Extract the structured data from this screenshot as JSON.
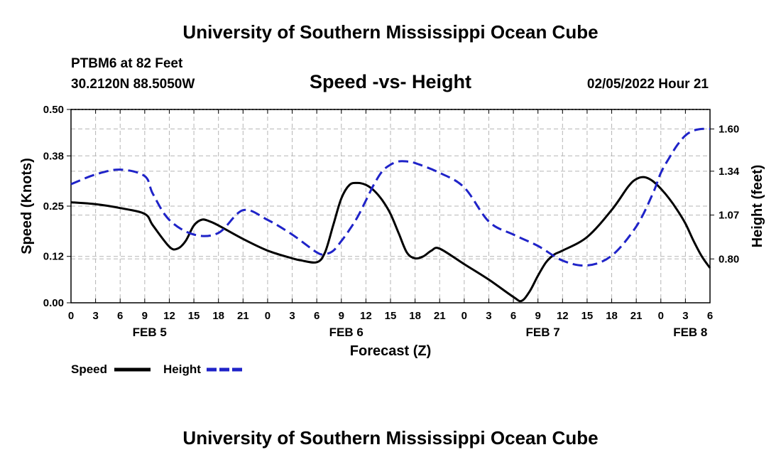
{
  "header": {
    "title": "University of Southern Mississippi Ocean Cube",
    "station": "PTBM6 at 82 Feet",
    "coords": "30.2120N  88.5050W",
    "subtitle": "Speed -vs- Height",
    "datetime": "02/05/2022 Hour 21"
  },
  "footer": {
    "title": "University of Southern Mississippi Ocean Cube"
  },
  "colors": {
    "speed": "#000000",
    "height": "#1f23c8",
    "grid": "#b5b5b5"
  },
  "chart_data": {
    "type": "line",
    "title": "Speed -vs- Height",
    "xlabel": "Forecast (Z)",
    "ylabel": "Speed (Knots)",
    "y2label": "Height (feet)",
    "x_range_hours": [
      0,
      78
    ],
    "y_left": {
      "min": 0,
      "max": 0.5,
      "ticks": [
        "0.00",
        "0.12",
        "0.25",
        "0.38",
        "0.50"
      ]
    },
    "y_right": {
      "min": 0.53,
      "max": 1.72,
      "ticks": [
        "0.80",
        "1.07",
        "1.34",
        "1.60"
      ]
    },
    "x_tick_labels": [
      "0",
      "3",
      "6",
      "9",
      "12",
      "15",
      "18",
      "21",
      "0",
      "3",
      "6",
      "9",
      "12",
      "15",
      "18",
      "21",
      "0",
      "3",
      "6",
      "9",
      "12",
      "15",
      "18",
      "21",
      "0",
      "3",
      "6"
    ],
    "date_labels": [
      {
        "text": "FEB 5",
        "hour": 9.6
      },
      {
        "text": "FEB 6",
        "hour": 33.6
      },
      {
        "text": "FEB 7",
        "hour": 57.6
      },
      {
        "text": "FEB 8",
        "hour": 75.6
      }
    ],
    "grid": true,
    "legend": [
      "Speed",
      "Height"
    ],
    "series": [
      {
        "name": "Speed",
        "style": "solid",
        "axis": "left",
        "x": [
          0,
          3,
          6,
          9,
          10,
          12,
          13,
          14,
          15,
          16,
          17,
          18,
          21,
          24,
          27,
          28,
          30,
          31,
          32,
          33,
          34,
          35,
          36,
          37,
          38,
          39,
          40,
          41,
          42,
          43,
          44,
          45,
          48,
          51,
          54,
          55,
          56,
          57,
          58,
          59,
          60,
          63,
          66,
          68,
          69,
          70,
          71,
          72,
          73,
          74,
          75,
          76,
          77,
          78
        ],
        "y": [
          0.26,
          0.255,
          0.245,
          0.23,
          0.2,
          0.145,
          0.14,
          0.16,
          0.2,
          0.215,
          0.21,
          0.2,
          0.165,
          0.135,
          0.115,
          0.11,
          0.105,
          0.13,
          0.2,
          0.27,
          0.305,
          0.31,
          0.305,
          0.29,
          0.265,
          0.23,
          0.18,
          0.13,
          0.115,
          0.12,
          0.135,
          0.14,
          0.1,
          0.06,
          0.015,
          0.005,
          0.03,
          0.07,
          0.105,
          0.125,
          0.135,
          0.17,
          0.24,
          0.3,
          0.32,
          0.325,
          0.315,
          0.295,
          0.27,
          0.24,
          0.205,
          0.16,
          0.12,
          0.09
        ]
      },
      {
        "name": "Height",
        "style": "dashed",
        "axis": "right",
        "x": [
          0,
          3,
          6,
          9,
          10,
          12,
          15,
          18,
          21,
          24,
          27,
          30,
          31,
          32,
          33,
          34,
          35,
          36,
          37,
          38,
          39,
          40,
          41,
          42,
          45,
          48,
          51,
          54,
          57,
          60,
          63,
          66,
          69,
          71,
          72,
          73,
          74,
          75,
          76,
          77,
          78
        ],
        "y": [
          1.26,
          1.32,
          1.35,
          1.31,
          1.2,
          1.04,
          0.95,
          0.96,
          1.1,
          1.04,
          0.95,
          0.84,
          0.83,
          0.85,
          0.91,
          0.98,
          1.06,
          1.16,
          1.26,
          1.34,
          1.38,
          1.4,
          1.4,
          1.39,
          1.33,
          1.24,
          1.03,
          0.95,
          0.88,
          0.79,
          0.76,
          0.82,
          1.0,
          1.2,
          1.33,
          1.42,
          1.5,
          1.56,
          1.59,
          1.6,
          1.6
        ]
      }
    ]
  }
}
